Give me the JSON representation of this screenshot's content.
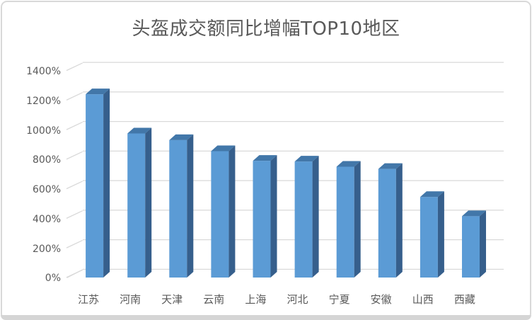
{
  "chart_data": {
    "type": "bar",
    "style": "3d-clustered-column",
    "title": "头盔成交额同比增幅TOP10地区",
    "categories": [
      "江苏",
      "河南",
      "天津",
      "云南",
      "上海",
      "河北",
      "宁夏",
      "安徽",
      "山西",
      "西藏"
    ],
    "values": [
      1240,
      975,
      930,
      855,
      790,
      785,
      750,
      735,
      545,
      415
    ],
    "unit": "%",
    "xlabel": "",
    "ylabel": "",
    "ylim": [
      0,
      1400
    ],
    "ytick_step": 200,
    "ytick_labels": [
      "0%",
      "200%",
      "400%",
      "600%",
      "800%",
      "1000%",
      "1200%",
      "1400%"
    ],
    "grid": true,
    "legend": "none",
    "colors": {
      "bar_front": "#5B9BD5",
      "bar_top": "#4277A9",
      "bar_side": "#365F8C",
      "gridline": "#D9D9D9",
      "text": "#595959",
      "card_border": "#D9D9D9",
      "bottom_bar": "#D5D5D5",
      "background": "#FFFFFF"
    }
  }
}
